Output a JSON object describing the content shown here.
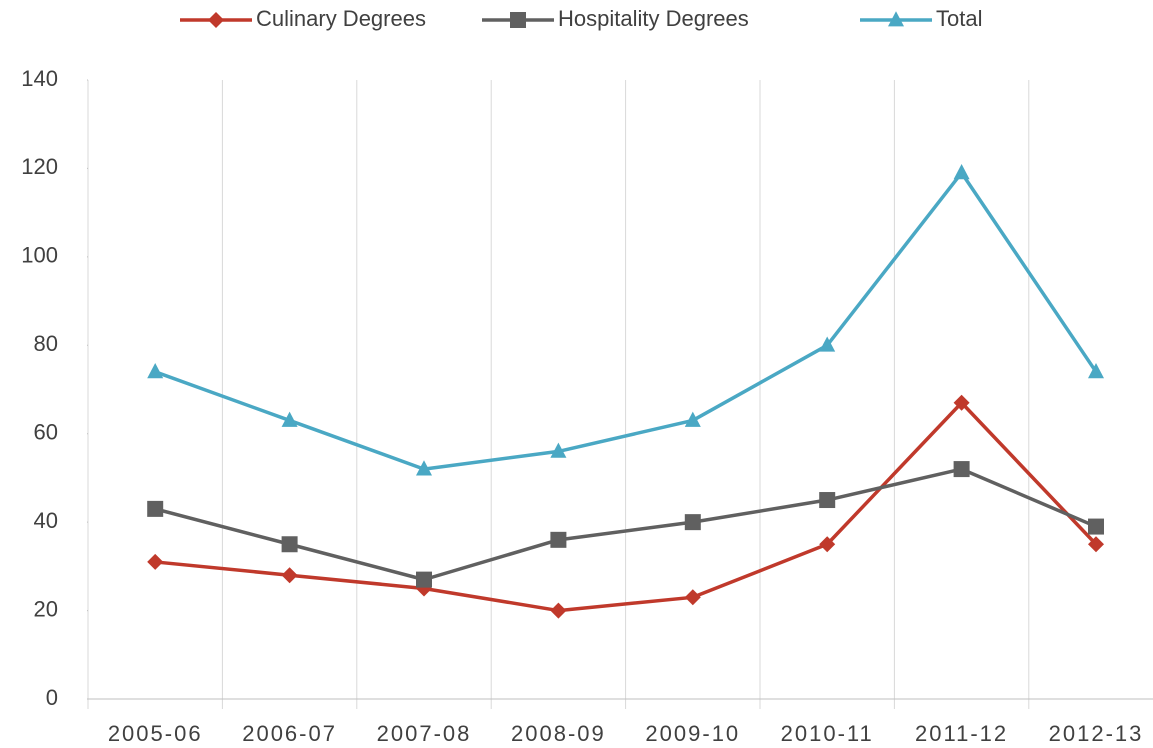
{
  "chart_data": {
    "type": "line",
    "categories": [
      "2005-06",
      "2006-07",
      "2007-08",
      "2008-09",
      "2009-10",
      "2010-11",
      "2011-12",
      "2012-13"
    ],
    "series": [
      {
        "name": "Culinary Degrees",
        "color": "#c0392b",
        "marker": "diamond",
        "values": [
          31,
          28,
          25,
          20,
          23,
          35,
          67,
          35
        ]
      },
      {
        "name": "Hospitality Degrees",
        "color": "#606060",
        "marker": "square",
        "values": [
          43,
          35,
          27,
          36,
          40,
          45,
          52,
          39
        ]
      },
      {
        "name": "Total",
        "color": "#4aa8c4",
        "marker": "triangle",
        "values": [
          74,
          63,
          52,
          56,
          63,
          80,
          119,
          74
        ]
      }
    ],
    "ylim": [
      0,
      140
    ],
    "yticks": [
      0,
      20,
      40,
      60,
      80,
      100,
      120,
      140
    ],
    "grid": true,
    "legend": "top"
  }
}
